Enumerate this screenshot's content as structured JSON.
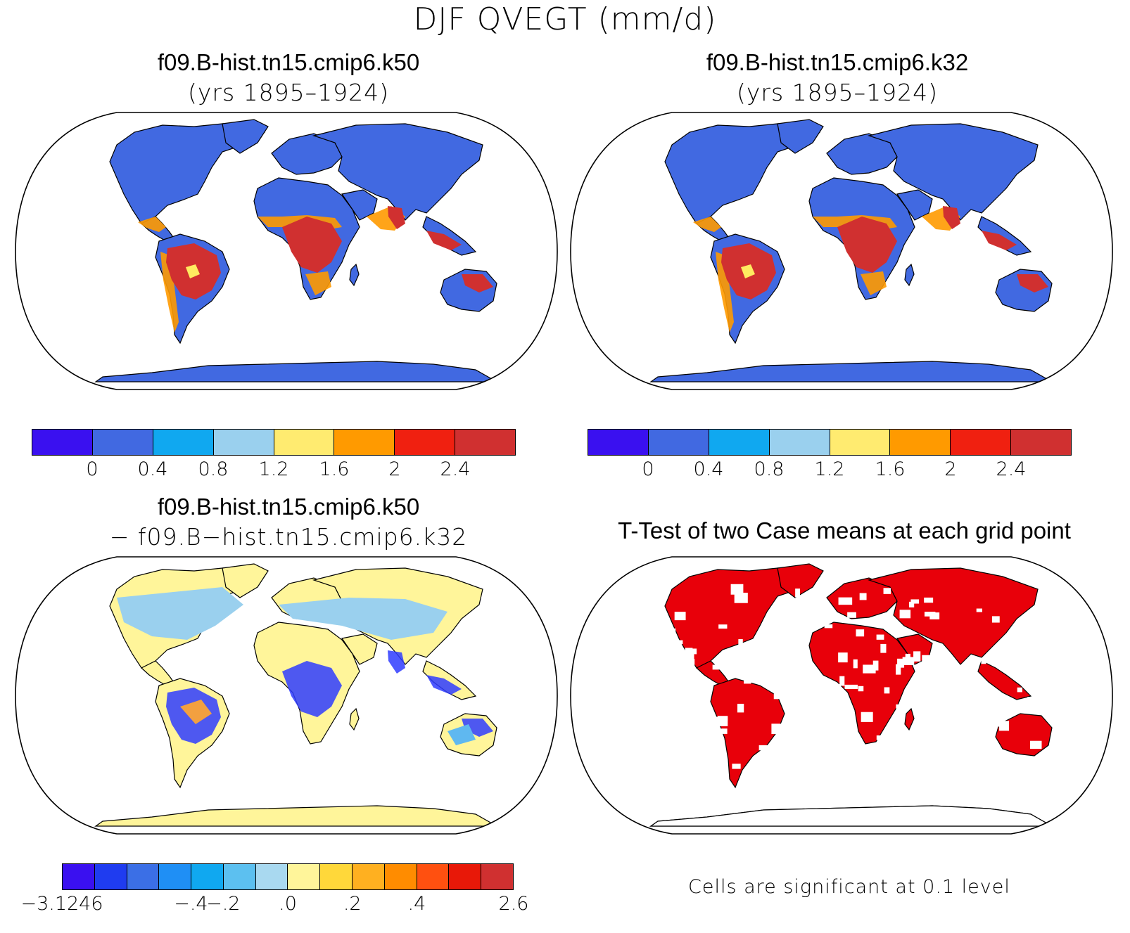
{
  "figure": {
    "title": "DJF QVEGT (mm/d)"
  },
  "panels": [
    {
      "id": "case1",
      "title": "f09.B-hist.tn15.cmip6.k50",
      "subtitle": "(yrs 1895–1924)",
      "land_color": "#4169e1",
      "accent_colors": [
        "#d03030",
        "#ff9a00",
        "#ffeb60",
        "#e82010"
      ]
    },
    {
      "id": "case2",
      "title": "f09.B-hist.tn15.cmip6.k32",
      "subtitle": "(yrs 1895–1924)",
      "land_color": "#4169e1",
      "accent_colors": [
        "#d03030",
        "#ff9a00",
        "#ffeb60",
        "#e82010"
      ]
    },
    {
      "id": "diff",
      "title": "f09.B-hist.tn15.cmip6.k50",
      "subtitle": "− f09.B−hist.tn15.cmip6.k32",
      "land_color": "#fff59a",
      "accent_colors": [
        "#2f3cff",
        "#9ad0ee",
        "#f2a040",
        "#5fb8f0"
      ]
    },
    {
      "id": "ttest",
      "title": "T-Test of two Case means at each grid point",
      "subtitle": "",
      "land_color": "#e8000a",
      "accent_colors": [
        "#ffffff"
      ]
    }
  ],
  "colorbars": [
    {
      "id": "cbar-case1",
      "colors": [
        "#3a10f0",
        "#4169e1",
        "#10a8f0",
        "#9ad0ee",
        "#ffeb70",
        "#ff9a00",
        "#f02010",
        "#d03030"
      ],
      "labels": [
        "0",
        "0.4",
        "0.8",
        "1.2",
        "1.6",
        "2",
        "2.4"
      ]
    },
    {
      "id": "cbar-case2",
      "colors": [
        "#3a10f0",
        "#4169e1",
        "#10a8f0",
        "#9ad0ee",
        "#ffeb70",
        "#ff9a00",
        "#f02010",
        "#d03030"
      ],
      "labels": [
        "0",
        "0.4",
        "0.8",
        "1.2",
        "1.6",
        "2",
        "2.4"
      ]
    },
    {
      "id": "cbar-diff",
      "colors": [
        "#3a10f0",
        "#1f3cf0",
        "#3b6fe6",
        "#1f8ff5",
        "#10a8f0",
        "#5cc0f0",
        "#a9d9f0",
        "#fff59a",
        "#ffd83a",
        "#ffb020",
        "#ff8c00",
        "#ff5010",
        "#e81808",
        "#d03030"
      ],
      "labels": [
        "−3.1246",
        "−.4",
        "−.2",
        ".0",
        ".2",
        ".4",
        "2.6"
      ]
    }
  ],
  "note": "Cells are significant at 0.1 level"
}
